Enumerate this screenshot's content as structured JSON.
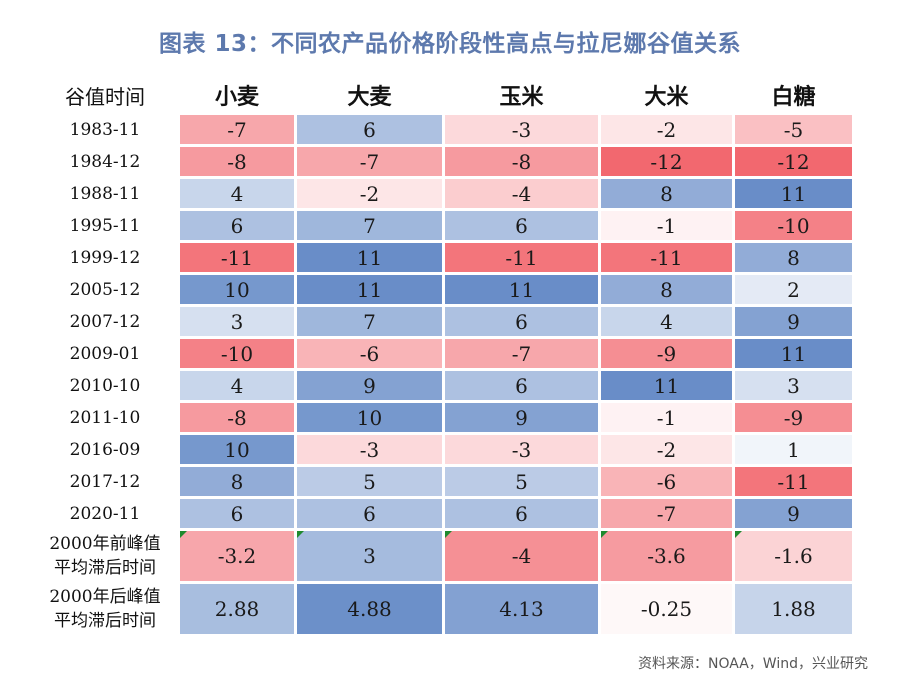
{
  "title": "图表 13：不同农产品价格阶段性高点与拉尼娜谷值关系",
  "source": "资料来源：NOAA，Wind，兴业研究",
  "chart_data": {
    "type": "heatmap",
    "corner_label": "谷值时间",
    "columns": [
      "小麦",
      "大麦",
      "玉米",
      "大米",
      "白糖"
    ],
    "rows": [
      {
        "label": "1983-11",
        "values": [
          "-7",
          "6",
          "-3",
          "-2",
          "-5"
        ]
      },
      {
        "label": "1984-12",
        "values": [
          "-8",
          "-7",
          "-8",
          "-12",
          "-12"
        ]
      },
      {
        "label": "1988-11",
        "values": [
          "4",
          "-2",
          "-4",
          "8",
          "11"
        ]
      },
      {
        "label": "1995-11",
        "values": [
          "6",
          "7",
          "6",
          "-1",
          "-10"
        ]
      },
      {
        "label": "1999-12",
        "values": [
          "-11",
          "11",
          "-11",
          "-11",
          "8"
        ]
      },
      {
        "label": "2005-12",
        "values": [
          "10",
          "11",
          "11",
          "8",
          "2"
        ]
      },
      {
        "label": "2007-12",
        "values": [
          "3",
          "7",
          "6",
          "4",
          "9"
        ]
      },
      {
        "label": "2009-01",
        "values": [
          "-10",
          "-6",
          "-7",
          "-9",
          "11"
        ]
      },
      {
        "label": "2010-10",
        "values": [
          "4",
          "9",
          "6",
          "11",
          "3"
        ]
      },
      {
        "label": "2011-10",
        "values": [
          "-8",
          "10",
          "9",
          "-1",
          "-9"
        ]
      },
      {
        "label": "2016-09",
        "values": [
          "10",
          "-3",
          "-3",
          "-2",
          "1"
        ]
      },
      {
        "label": "2017-12",
        "values": [
          "8",
          "5",
          "5",
          "-6",
          "-11"
        ]
      },
      {
        "label": "2020-11",
        "values": [
          "6",
          "6",
          "6",
          "-7",
          "9"
        ]
      }
    ],
    "summary_rows": [
      {
        "label_line1": "2000年前峰值",
        "label_line2": "平均滞后时间",
        "values": [
          "-3.2",
          "3",
          "-4",
          "-3.6",
          "-1.6"
        ]
      },
      {
        "label_line1": "2000年后峰值",
        "label_line2": "平均滞后时间",
        "values": [
          "2.88",
          "4.88",
          "4.13",
          "-0.25",
          "1.88"
        ]
      }
    ],
    "color_scale": {
      "negative": "#f2686f",
      "positive": "#5b83c3",
      "neutral": "#ffffff",
      "max_abs": 12
    }
  }
}
